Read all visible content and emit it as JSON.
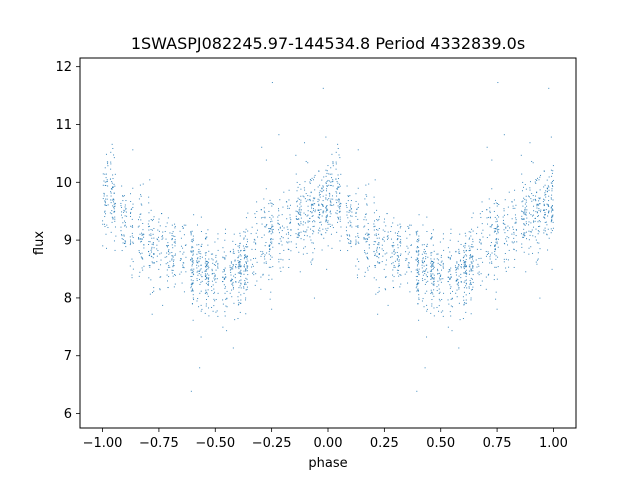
{
  "chart_data": {
    "type": "scatter",
    "title": "1SWASPJ082245.97-144534.8 Period 4332839.0s",
    "xlabel": "phase",
    "ylabel": "flux",
    "xlim": [
      -1.1,
      1.1
    ],
    "ylim": [
      5.75,
      12.15
    ],
    "xticks": [
      -1.0,
      -0.75,
      -0.5,
      -0.25,
      0.0,
      0.25,
      0.5,
      0.75,
      1.0
    ],
    "xtick_labels": [
      "−1.00",
      "−0.75",
      "−0.50",
      "−0.25",
      "0.00",
      "0.25",
      "0.50",
      "0.75",
      "1.00"
    ],
    "yticks": [
      6,
      7,
      8,
      9,
      10,
      11,
      12
    ],
    "ytick_labels": [
      "6",
      "7",
      "8",
      "9",
      "10",
      "11",
      "12"
    ],
    "grid": false,
    "marker_color": "#1f77b4",
    "marker_size": 0.6,
    "phase_range": [
      -1.0,
      1.0
    ],
    "folded_profile": [
      {
        "phase": 0.0,
        "median_flux": 9.6,
        "spread": 0.35
      },
      {
        "phase": 0.03,
        "median_flux": 9.9,
        "spread": 0.35
      },
      {
        "phase": 0.06,
        "median_flux": 9.5,
        "spread": 0.35
      },
      {
        "phase": 0.12,
        "median_flux": 9.3,
        "spread": 0.35
      },
      {
        "phase": 0.18,
        "median_flux": 9.0,
        "spread": 0.35
      },
      {
        "phase": 0.25,
        "median_flux": 8.8,
        "spread": 0.35
      },
      {
        "phase": 0.3,
        "median_flux": 8.7,
        "spread": 0.35
      },
      {
        "phase": 0.36,
        "median_flux": 8.75,
        "spread": 0.35
      },
      {
        "phase": 0.42,
        "median_flux": 8.55,
        "spread": 0.35
      },
      {
        "phase": 0.48,
        "median_flux": 8.4,
        "spread": 0.35
      },
      {
        "phase": 0.55,
        "median_flux": 8.35,
        "spread": 0.35
      },
      {
        "phase": 0.6,
        "median_flux": 8.4,
        "spread": 0.35
      },
      {
        "phase": 0.64,
        "median_flux": 8.6,
        "spread": 0.35
      },
      {
        "phase": 0.68,
        "median_flux": 8.9,
        "spread": 0.35
      },
      {
        "phase": 0.72,
        "median_flux": 9.0,
        "spread": 0.35
      },
      {
        "phase": 0.78,
        "median_flux": 9.2,
        "spread": 0.35
      },
      {
        "phase": 0.84,
        "median_flux": 9.3,
        "spread": 0.35
      },
      {
        "phase": 0.9,
        "median_flux": 9.4,
        "spread": 0.35
      },
      {
        "phase": 0.95,
        "median_flux": 9.55,
        "spread": 0.35
      },
      {
        "phase": 1.0,
        "median_flux": 9.6,
        "spread": 0.35
      }
    ]
  }
}
